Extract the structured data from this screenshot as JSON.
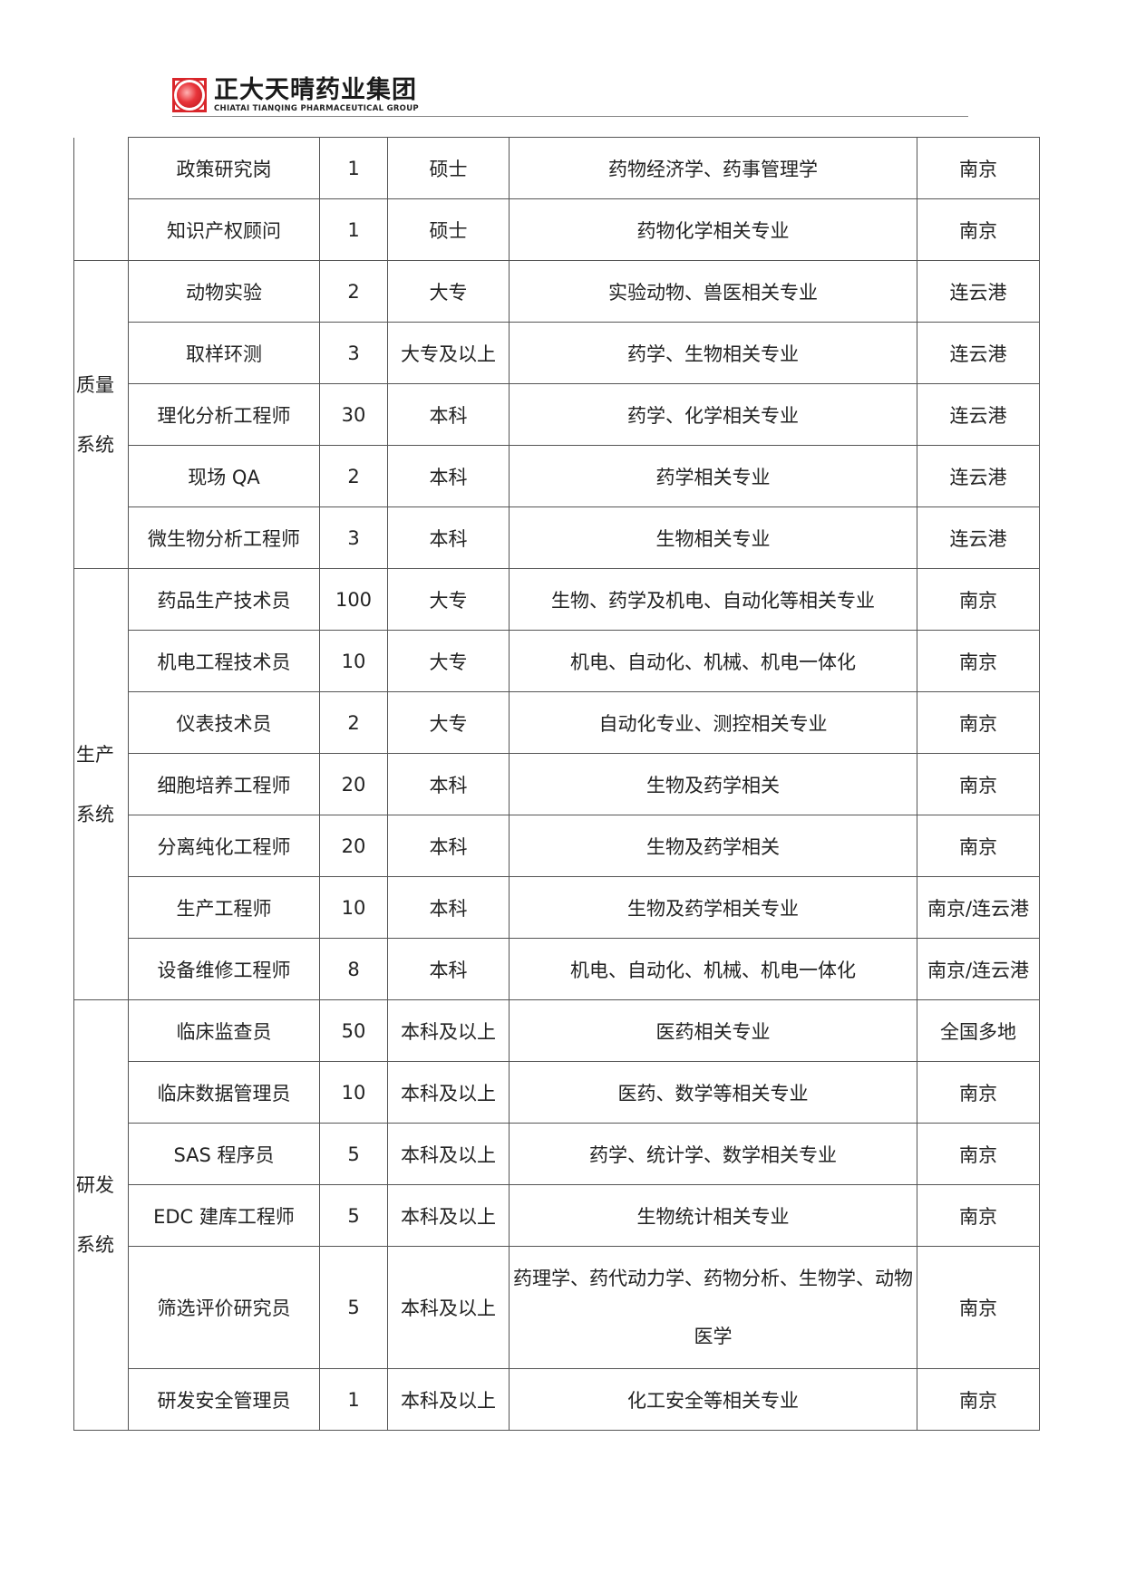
{
  "header": {
    "logo_cn": "正大天晴药业集团",
    "logo_en": "CHIATAI TIANQING PHARMACEUTICAL GROUP",
    "logo_color": "#d9262b"
  },
  "groups": [
    {
      "category": "",
      "rows": [
        [
          "政策研究岗",
          "1",
          "硕士",
          "药物经济学、药事管理学",
          "南京"
        ],
        [
          "知识产权顾问",
          "1",
          "硕士",
          "药物化学相关专业",
          "南京"
        ]
      ]
    },
    {
      "category": "质量系统",
      "cat_lines": [
        "质量",
        "系统"
      ],
      "rows": [
        [
          "动物实验",
          "2",
          "大专",
          "实验动物、兽医相关专业",
          "连云港"
        ],
        [
          "取样环测",
          "3",
          "大专及以上",
          "药学、生物相关专业",
          "连云港"
        ],
        [
          "理化分析工程师",
          "30",
          "本科",
          "药学、化学相关专业",
          "连云港"
        ],
        [
          "现场 QA",
          "2",
          "本科",
          "药学相关专业",
          "连云港"
        ],
        [
          "微生物分析工程师",
          "3",
          "本科",
          "生物相关专业",
          "连云港"
        ]
      ]
    },
    {
      "category": "生产系统",
      "cat_lines": [
        "生产",
        "系统"
      ],
      "rows": [
        [
          "药品生产技术员",
          "100",
          "大专",
          "生物、药学及机电、自动化等相关专业",
          "南京"
        ],
        [
          "机电工程技术员",
          "10",
          "大专",
          "机电、自动化、机械、机电一体化",
          "南京"
        ],
        [
          "仪表技术员",
          "2",
          "大专",
          "自动化专业、测控相关专业",
          "南京"
        ],
        [
          "细胞培养工程师",
          "20",
          "本科",
          "生物及药学相关",
          "南京"
        ],
        [
          "分离纯化工程师",
          "20",
          "本科",
          "生物及药学相关",
          "南京"
        ],
        [
          "生产工程师",
          "10",
          "本科",
          "生物及药学相关专业",
          "南京/连云港"
        ],
        [
          "设备维修工程师",
          "8",
          "本科",
          "机电、自动化、机械、机电一体化",
          "南京/连云港"
        ]
      ]
    },
    {
      "category": "研发系统",
      "cat_lines": [
        "研发",
        "系统"
      ],
      "rows": [
        [
          "临床监查员",
          "50",
          "本科及以上",
          "医药相关专业",
          "全国多地"
        ],
        [
          "临床数据管理员",
          "10",
          "本科及以上",
          "医药、数学等相关专业",
          "南京"
        ],
        [
          "SAS 程序员",
          "5",
          "本科及以上",
          "药学、统计学、数学相关专业",
          "南京"
        ],
        [
          "EDC 建库工程师",
          "5",
          "本科及以上",
          "生物统计相关专业",
          "南京"
        ],
        [
          "筛选评价研究员",
          "5",
          "本科及以上",
          "药理学、药代动力学、药物分析、生物学、动物医学",
          "南京"
        ],
        [
          "研发安全管理员",
          "1",
          "本科及以上",
          "化工安全等相关专业",
          "南京"
        ]
      ]
    }
  ]
}
